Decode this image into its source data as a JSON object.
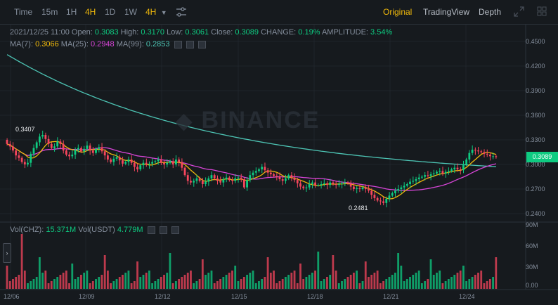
{
  "toolbar": {
    "intervals": [
      "Time",
      "15m",
      "1H",
      "4H",
      "1D",
      "1W"
    ],
    "active_interval": "4H",
    "interval_dropdown": "4H",
    "views": [
      "Original",
      "TradingView",
      "Depth"
    ],
    "active_view": "Original"
  },
  "legend": {
    "date": "2021/12/25 11:00",
    "open_label": "Open:",
    "open": "0.3083",
    "high_label": "High:",
    "high": "0.3170",
    "low_label": "Low:",
    "low": "0.3061",
    "close_label": "Close:",
    "close": "0.3089",
    "change_label": "CHANGE:",
    "change": "0.19%",
    "amplitude_label": "AMPLITUDE:",
    "amplitude": "3.54%",
    "ma7_label": "MA(7):",
    "ma7": "0.3066",
    "ma25_label": "MA(25):",
    "ma25": "0.2948",
    "ma99_label": "MA(99):",
    "ma99": "0.2853",
    "vol_chz_label": "Vol(CHZ):",
    "vol_chz": "15.371M",
    "vol_usdt_label": "Vol(USDT)",
    "vol_usdt": "4.779M"
  },
  "watermark": "BINANCE",
  "current_price": "0.3089",
  "annotations": {
    "high_marker": "0.3407",
    "low_marker": "0.2481"
  },
  "colors": {
    "up": "#0ecb81",
    "down": "#f6465d",
    "ma7": "#f0b90b",
    "ma25": "#d845d8",
    "ma99": "#4dc4b4",
    "accent": "#f0b90b"
  },
  "chart_data": {
    "type": "candlestick",
    "price_axis_ticks": [
      "0.4500",
      "0.4200",
      "0.3900",
      "0.3600",
      "0.3300",
      "0.3000",
      "0.2700",
      "0.2400"
    ],
    "volume_axis_ticks": [
      "90M",
      "60M",
      "30M",
      "0.00"
    ],
    "date_ticks": [
      "12/06",
      "12/09",
      "12/12",
      "12/15",
      "12/18",
      "12/21",
      "12/24"
    ],
    "ma_closes": [
      0.325,
      0.322,
      0.317,
      0.311,
      0.308,
      0.303,
      0.3,
      0.302,
      0.313,
      0.32,
      0.327,
      0.334,
      0.336,
      0.331,
      0.325,
      0.32,
      0.322,
      0.328,
      0.325,
      0.317,
      0.312,
      0.31,
      0.312,
      0.318,
      0.32,
      0.316,
      0.319,
      0.323,
      0.317,
      0.314,
      0.319,
      0.321,
      0.316,
      0.311,
      0.306,
      0.303,
      0.307,
      0.309,
      0.305,
      0.301,
      0.303,
      0.306,
      0.302,
      0.297,
      0.294,
      0.299,
      0.302,
      0.3,
      0.301,
      0.303,
      0.304,
      0.306,
      0.302,
      0.3,
      0.302,
      0.304,
      0.3,
      0.306,
      0.303,
      0.296,
      0.287,
      0.28,
      0.278,
      0.28,
      0.283,
      0.28,
      0.276,
      0.279,
      0.283,
      0.287,
      0.283,
      0.28,
      0.278,
      0.282,
      0.284,
      0.281,
      0.28,
      0.283,
      0.284,
      0.282,
      0.272,
      0.281,
      0.287,
      0.29,
      0.292,
      0.294,
      0.297,
      0.293,
      0.29,
      0.288,
      0.286,
      0.285,
      0.282,
      0.28,
      0.283,
      0.287,
      0.284,
      0.281,
      0.277,
      0.273,
      0.271,
      0.272,
      0.276,
      0.278,
      0.275,
      0.275,
      0.276,
      0.277,
      0.275,
      0.278,
      0.276,
      0.275,
      0.276,
      0.277,
      0.278,
      0.277,
      0.273,
      0.27,
      0.271,
      0.27,
      0.272,
      0.27,
      0.268,
      0.263,
      0.259,
      0.256,
      0.255,
      0.253,
      0.258,
      0.262,
      0.265,
      0.268,
      0.27,
      0.272,
      0.274,
      0.276,
      0.279,
      0.28,
      0.282,
      0.284,
      0.285,
      0.287,
      0.286,
      0.288,
      0.289,
      0.291,
      0.292,
      0.289,
      0.291,
      0.292,
      0.294,
      0.296,
      0.294,
      0.293,
      0.3,
      0.306,
      0.314,
      0.318,
      0.317,
      0.316,
      0.315,
      0.313,
      0.312,
      0.31,
      0.31,
      0.309
    ]
  }
}
